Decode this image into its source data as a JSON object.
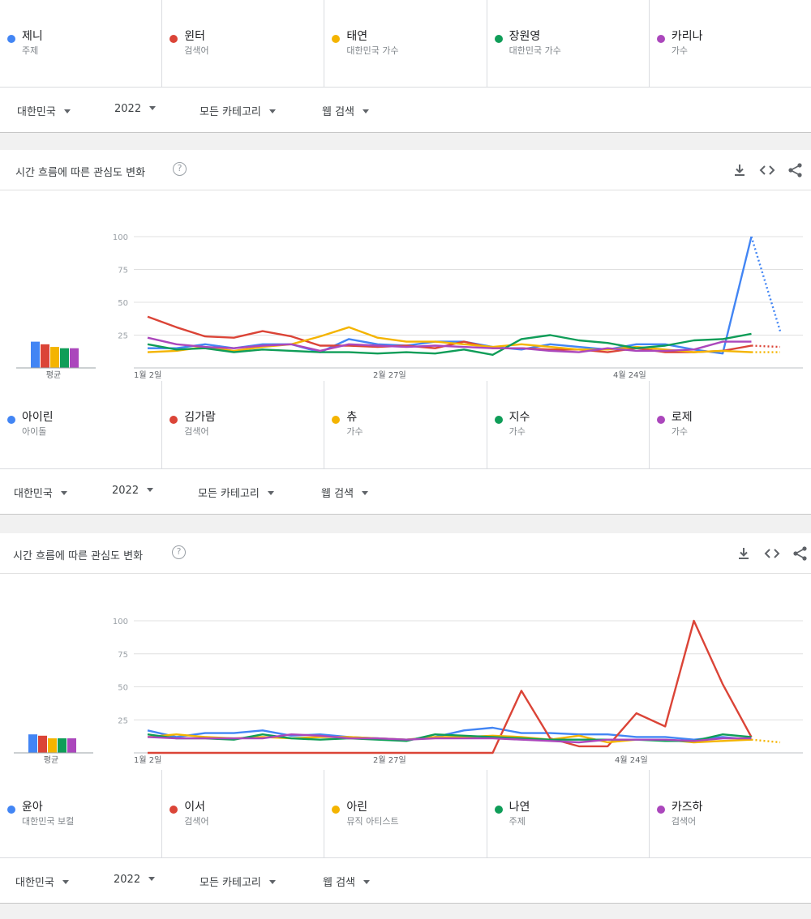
{
  "colors": {
    "blue": "#4285f4",
    "red": "#db4437",
    "yellow": "#f4b400",
    "green": "#0f9d58",
    "purple": "#ab47bc"
  },
  "sections": [
    {
      "terms": [
        {
          "name": "제니",
          "type": "주제",
          "color": "#4285f4"
        },
        {
          "name": "윈터",
          "type": "검색어",
          "color": "#db4437"
        },
        {
          "name": "태연",
          "type": "대한민국 가수",
          "color": "#f4b400"
        },
        {
          "name": "장원영",
          "type": "대한민국 가수",
          "color": "#0f9d58"
        },
        {
          "name": "카리나",
          "type": "가수",
          "color": "#ab47bc"
        }
      ],
      "filters": {
        "region": "대한민국",
        "year": "2022",
        "category": "모든 카테고리",
        "search_type": "웹 검색"
      }
    },
    {
      "terms": [
        {
          "name": "아이린",
          "type": "아이돌",
          "color": "#4285f4"
        },
        {
          "name": "김가람",
          "type": "검색어",
          "color": "#db4437"
        },
        {
          "name": "츄",
          "type": "가수",
          "color": "#f4b400"
        },
        {
          "name": "지수",
          "type": "가수",
          "color": "#0f9d58"
        },
        {
          "name": "로제",
          "type": "가수",
          "color": "#ab47bc"
        }
      ],
      "filters": {
        "region": "대한민국",
        "year": "2022",
        "category": "모든 카테고리",
        "search_type": "웹 검색"
      }
    },
    {
      "terms": [
        {
          "name": "윤아",
          "type": "대한민국 보컬",
          "color": "#4285f4"
        },
        {
          "name": "이서",
          "type": "검색어",
          "color": "#db4437"
        },
        {
          "name": "아린",
          "type": "뮤직 아티스트",
          "color": "#f4b400"
        },
        {
          "name": "나연",
          "type": "주제",
          "color": "#0f9d58"
        },
        {
          "name": "카즈하",
          "type": "검색어",
          "color": "#ab47bc"
        }
      ],
      "filters": {
        "region": "대한민국",
        "year": "2022",
        "category": "모든 카테고리",
        "search_type": "웹 검색"
      }
    }
  ],
  "cards": [
    {
      "title": "시간 흐름에 따른 관심도 변화",
      "help_icon": "help-circle-icon",
      "actions": [
        "download-icon",
        "embed-code-icon",
        "share-icon"
      ]
    },
    {
      "title": "시간 흐름에 따른 관심도 변화",
      "help_icon": "help-circle-icon",
      "actions": [
        "download-icon",
        "embed-code-icon",
        "share-icon"
      ]
    }
  ],
  "chart_data": [
    {
      "type": "line",
      "title": "시간 흐름에 따른 관심도 변화",
      "ylim": [
        0,
        100
      ],
      "y_ticks": [
        "100",
        "75",
        "50",
        "25"
      ],
      "x_tick_labels": [
        "1월 2일",
        "2월 27일",
        "4월 24일"
      ],
      "average_label": "평균",
      "grid": true,
      "legend": "none",
      "partial_last_point": true,
      "averages": [
        20,
        18,
        16,
        15,
        15
      ],
      "series": [
        {
          "name": "아이린",
          "color": "#4285f4",
          "values": [
            15,
            15,
            18,
            15,
            18,
            18,
            12,
            22,
            18,
            17,
            20,
            20,
            16,
            14,
            18,
            16,
            14,
            18,
            18,
            14,
            11,
            100,
            28
          ]
        },
        {
          "name": "김가람",
          "color": "#db4437",
          "values": [
            39,
            31,
            24,
            23,
            28,
            24,
            17,
            17,
            16,
            17,
            15,
            20,
            15,
            15,
            14,
            14,
            12,
            15,
            12,
            12,
            13,
            17,
            16
          ]
        },
        {
          "name": "츄",
          "color": "#f4b400",
          "values": [
            12,
            13,
            16,
            13,
            16,
            18,
            24,
            31,
            23,
            20,
            20,
            18,
            16,
            18,
            16,
            14,
            14,
            16,
            14,
            12,
            13,
            12,
            12
          ]
        },
        {
          "name": "지수",
          "color": "#0f9d58",
          "values": [
            18,
            14,
            15,
            12,
            14,
            13,
            12,
            12,
            11,
            12,
            11,
            14,
            10,
            22,
            25,
            21,
            19,
            15,
            17,
            21,
            22,
            26
          ]
        },
        {
          "name": "로제",
          "color": "#ab47bc",
          "values": [
            23,
            18,
            16,
            15,
            17,
            18,
            13,
            18,
            17,
            16,
            17,
            16,
            15,
            15,
            13,
            12,
            15,
            13,
            13,
            14,
            20,
            20
          ]
        }
      ]
    },
    {
      "type": "line",
      "title": "시간 흐름에 따른 관심도 변화",
      "ylim": [
        0,
        100
      ],
      "y_ticks": [
        "100",
        "75",
        "50",
        "25"
      ],
      "x_tick_labels": [
        "1월 2일",
        "2월 27일",
        "4월 24일"
      ],
      "average_label": "평균",
      "grid": true,
      "legend": "none",
      "partial_last_point": true,
      "averages": [
        14,
        13,
        11,
        11,
        11
      ],
      "series": [
        {
          "name": "윤아",
          "color": "#4285f4",
          "values": [
            17,
            12,
            15,
            15,
            17,
            13,
            14,
            12,
            11,
            10,
            12,
            17,
            19,
            15,
            15,
            14,
            14,
            12,
            12,
            10,
            12,
            10
          ]
        },
        {
          "name": "이서",
          "color": "#db4437",
          "values": [
            0,
            0,
            0,
            0,
            0,
            0,
            0,
            0,
            0,
            0,
            0,
            0,
            0,
            47,
            11,
            5,
            5,
            30,
            20,
            100,
            52,
            12
          ]
        },
        {
          "name": "아린",
          "color": "#f4b400",
          "values": [
            12,
            14,
            12,
            11,
            12,
            11,
            12,
            12,
            11,
            10,
            12,
            12,
            13,
            12,
            10,
            13,
            8,
            10,
            10,
            8,
            9,
            10,
            8
          ]
        },
        {
          "name": "나연",
          "color": "#0f9d58",
          "values": [
            14,
            11,
            11,
            10,
            14,
            11,
            10,
            11,
            10,
            9,
            14,
            13,
            12,
            11,
            10,
            10,
            10,
            10,
            9,
            9,
            14,
            12
          ]
        },
        {
          "name": "카즈하",
          "color": "#ab47bc",
          "values": [
            12,
            11,
            11,
            11,
            11,
            14,
            13,
            11,
            11,
            10,
            11,
            11,
            11,
            10,
            9,
            8,
            10,
            10,
            10,
            9,
            11,
            11
          ]
        }
      ]
    }
  ]
}
